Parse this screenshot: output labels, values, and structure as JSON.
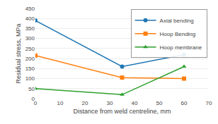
{
  "chart_data": {
    "type": "line",
    "series": [
      {
        "name": "Axial bending",
        "x": [
          0,
          35,
          60
        ],
        "values": [
          390,
          160,
          220
        ],
        "marker": "circle"
      },
      {
        "name": "Hoop Bending",
        "x": [
          0,
          35,
          60
        ],
        "values": [
          215,
          105,
          100
        ],
        "marker": "square"
      },
      {
        "name": "Hoop membrane",
        "x": [
          0,
          35,
          60
        ],
        "values": [
          50,
          20,
          160
        ],
        "marker": "triangle-up"
      }
    ],
    "x_label": "Distance from weld centreline, mm",
    "y_label": "Residual stress, MPa",
    "xlim": [
      0,
      70
    ],
    "ylim": [
      0,
      450
    ],
    "xticks": [
      0,
      10,
      20,
      30,
      40,
      50,
      60,
      70
    ],
    "yticks": [
      0,
      50,
      100,
      150,
      200,
      250,
      300,
      350,
      400,
      450
    ],
    "grid": true,
    "legend": "upper right"
  }
}
